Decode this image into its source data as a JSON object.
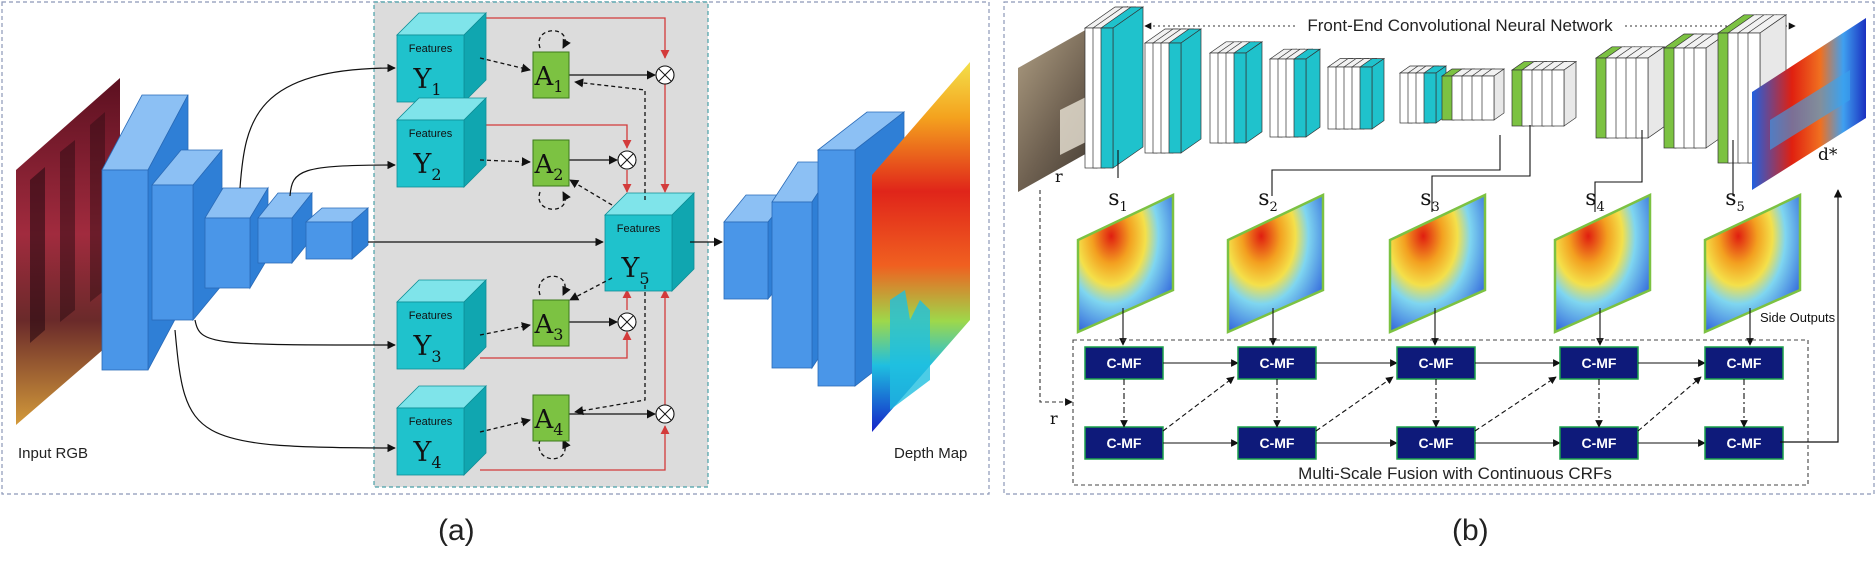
{
  "panel_a": {
    "caption": "(a)",
    "input_label": "Input RGB",
    "output_label": "Depth Map",
    "features_label": "Features",
    "nodes": [
      {
        "letter": "Y",
        "sub": "1"
      },
      {
        "letter": "Y",
        "sub": "2"
      },
      {
        "letter": "Y",
        "sub": "3"
      },
      {
        "letter": "Y",
        "sub": "4"
      },
      {
        "letter": "Y",
        "sub": "5"
      }
    ],
    "attention": [
      {
        "letter": "A",
        "sub": "1"
      },
      {
        "letter": "A",
        "sub": "2"
      },
      {
        "letter": "A",
        "sub": "3"
      },
      {
        "letter": "A",
        "sub": "4"
      }
    ],
    "multiply_symbol": "⊗"
  },
  "panel_b": {
    "caption": "(b)",
    "frontend_title": "Front-End Convolutional Neural Network",
    "fusion_title": "Multi-Scale Fusion with Continuous CRFs",
    "side_outputs": "Side Outputs",
    "input_r": "r",
    "bottom_r": "r",
    "output_label": "d*",
    "scales": [
      {
        "letter": "s",
        "sub": "1"
      },
      {
        "letter": "s",
        "sub": "2"
      },
      {
        "letter": "s",
        "sub": "3"
      },
      {
        "letter": "s",
        "sub": "4"
      },
      {
        "letter": "s",
        "sub": "5"
      }
    ],
    "cmf_label": "C-MF"
  },
  "colors": {
    "cube_blue": "#4a96e8",
    "cube_teal": "#1fc2cc",
    "attention_green": "#7cc242",
    "cmf_navy": "#0e1a7a",
    "flow_red": "#d33b3b",
    "gray_panel": "#dcdcdc"
  }
}
